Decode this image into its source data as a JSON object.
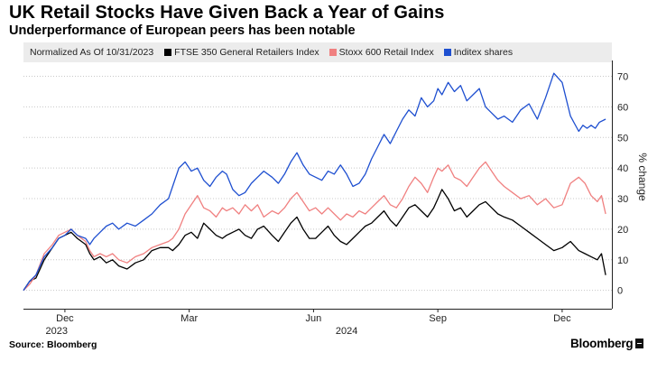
{
  "chart_data": {
    "type": "line",
    "title": "UK Retail Stocks Have Given Back a Year of Gains",
    "subtitle": "Underperformance of European peers has been notable",
    "note": "Normalized As Of 10/31/2023",
    "ylabel": "% change",
    "ylim": [
      -6,
      74
    ],
    "yticks": [
      0,
      10,
      20,
      30,
      40,
      50,
      60,
      70
    ],
    "xlim": [
      0,
      14.2
    ],
    "xticks": [
      {
        "label": "Dec",
        "x": 1
      },
      {
        "label": "Mar",
        "x": 4
      },
      {
        "label": "Jun",
        "x": 7
      },
      {
        "label": "Sep",
        "x": 10
      },
      {
        "label": "Dec",
        "x": 13
      }
    ],
    "year_labels": [
      {
        "label": "2023",
        "x": 0.8
      },
      {
        "label": "2024",
        "x": 7.8
      }
    ],
    "series": [
      {
        "name": "FTSE 350 General Retailers Index",
        "color": "#000000",
        "x": [
          0,
          0.15,
          0.3,
          0.5,
          0.7,
          0.85,
          1,
          1.15,
          1.3,
          1.5,
          1.6,
          1.7,
          1.85,
          2,
          2.15,
          2.3,
          2.5,
          2.7,
          2.9,
          3.1,
          3.3,
          3.5,
          3.6,
          3.75,
          3.9,
          4.05,
          4.2,
          4.35,
          4.5,
          4.65,
          4.8,
          4.9,
          5.05,
          5.2,
          5.35,
          5.5,
          5.65,
          5.8,
          6.0,
          6.15,
          6.3,
          6.45,
          6.6,
          6.75,
          6.9,
          7.05,
          7.2,
          7.35,
          7.5,
          7.65,
          7.8,
          7.95,
          8.1,
          8.25,
          8.4,
          8.55,
          8.7,
          8.85,
          9.0,
          9.15,
          9.3,
          9.45,
          9.6,
          9.75,
          9.9,
          10.0,
          10.1,
          10.25,
          10.4,
          10.55,
          10.7,
          10.85,
          11.0,
          11.15,
          11.3,
          11.45,
          11.6,
          11.8,
          12.0,
          12.2,
          12.4,
          12.6,
          12.8,
          13.0,
          13.2,
          13.4,
          13.55,
          13.7,
          13.85,
          13.95,
          14.05
        ],
        "values": [
          0,
          3,
          4,
          10,
          14,
          17,
          18,
          19,
          17,
          15,
          12,
          10,
          11,
          9,
          10,
          8,
          7,
          9,
          10,
          13,
          14,
          14,
          13,
          15,
          18,
          19,
          17,
          22,
          20,
          18,
          17,
          18,
          19,
          20,
          18,
          17,
          20,
          21,
          18,
          16,
          19,
          22,
          24,
          20,
          17,
          17,
          19,
          21,
          18,
          16,
          15,
          17,
          19,
          21,
          22,
          24,
          26,
          23,
          21,
          24,
          27,
          28,
          26,
          24,
          27,
          30,
          33,
          30,
          26,
          27,
          24,
          26,
          28,
          29,
          27,
          25,
          24,
          23,
          21,
          19,
          17,
          15,
          13,
          14,
          16,
          13,
          12,
          11,
          10,
          12,
          5
        ]
      },
      {
        "name": "Stoxx 600 Retail Index",
        "color": "#f08080",
        "x": [
          0,
          0.15,
          0.3,
          0.5,
          0.7,
          0.85,
          1,
          1.15,
          1.3,
          1.5,
          1.6,
          1.7,
          1.85,
          2,
          2.15,
          2.3,
          2.5,
          2.7,
          2.9,
          3.1,
          3.3,
          3.5,
          3.6,
          3.75,
          3.9,
          4.05,
          4.2,
          4.35,
          4.5,
          4.65,
          4.8,
          4.9,
          5.05,
          5.2,
          5.35,
          5.5,
          5.65,
          5.8,
          6.0,
          6.15,
          6.3,
          6.45,
          6.6,
          6.75,
          6.9,
          7.05,
          7.2,
          7.35,
          7.5,
          7.65,
          7.8,
          7.95,
          8.1,
          8.25,
          8.4,
          8.55,
          8.7,
          8.85,
          9.0,
          9.15,
          9.3,
          9.45,
          9.6,
          9.75,
          9.9,
          10.0,
          10.1,
          10.25,
          10.4,
          10.55,
          10.7,
          10.85,
          11.0,
          11.15,
          11.3,
          11.45,
          11.6,
          11.8,
          12.0,
          12.2,
          12.4,
          12.6,
          12.8,
          13.0,
          13.2,
          13.4,
          13.55,
          13.7,
          13.85,
          13.95,
          14.05
        ],
        "values": [
          0,
          2,
          5,
          12,
          15,
          18,
          19,
          20,
          18,
          16,
          13,
          11,
          12,
          11,
          12,
          10,
          9,
          11,
          12,
          14,
          15,
          16,
          17,
          20,
          25,
          28,
          31,
          27,
          26,
          24,
          27,
          26,
          27,
          25,
          28,
          26,
          28,
          24,
          26,
          25,
          27,
          30,
          32,
          29,
          26,
          27,
          25,
          27,
          25,
          23,
          25,
          24,
          26,
          25,
          27,
          29,
          31,
          28,
          27,
          30,
          34,
          37,
          35,
          32,
          37,
          40,
          39,
          41,
          37,
          36,
          34,
          37,
          40,
          42,
          39,
          36,
          34,
          32,
          30,
          31,
          28,
          30,
          27,
          28,
          35,
          37,
          35,
          31,
          29,
          31,
          25
        ]
      },
      {
        "name": "Inditex shares",
        "color": "#1e4fd0",
        "x": [
          0,
          0.15,
          0.3,
          0.5,
          0.7,
          0.85,
          1,
          1.15,
          1.3,
          1.5,
          1.6,
          1.7,
          1.85,
          2,
          2.15,
          2.3,
          2.5,
          2.7,
          2.9,
          3.1,
          3.3,
          3.5,
          3.6,
          3.75,
          3.9,
          4.05,
          4.2,
          4.35,
          4.5,
          4.65,
          4.8,
          4.9,
          5.05,
          5.2,
          5.35,
          5.5,
          5.65,
          5.8,
          6.0,
          6.15,
          6.3,
          6.45,
          6.6,
          6.75,
          6.9,
          7.05,
          7.2,
          7.35,
          7.5,
          7.65,
          7.8,
          7.95,
          8.1,
          8.25,
          8.4,
          8.55,
          8.7,
          8.85,
          9.0,
          9.15,
          9.3,
          9.45,
          9.6,
          9.75,
          9.9,
          10.0,
          10.1,
          10.25,
          10.4,
          10.55,
          10.7,
          10.85,
          11.0,
          11.15,
          11.3,
          11.45,
          11.6,
          11.8,
          12.0,
          12.2,
          12.4,
          12.6,
          12.8,
          13.0,
          13.2,
          13.4,
          13.5,
          13.6,
          13.7,
          13.8,
          13.9,
          14.05
        ],
        "values": [
          0,
          3,
          5,
          11,
          14,
          17,
          18,
          20,
          18,
          17,
          15,
          17,
          19,
          21,
          22,
          20,
          22,
          21,
          23,
          25,
          28,
          30,
          34,
          40,
          42,
          39,
          40,
          36,
          34,
          37,
          39,
          38,
          33,
          31,
          32,
          35,
          37,
          39,
          37,
          35,
          38,
          42,
          45,
          41,
          38,
          37,
          36,
          39,
          38,
          41,
          38,
          34,
          35,
          38,
          43,
          47,
          51,
          48,
          52,
          56,
          59,
          57,
          63,
          60,
          62,
          66,
          64,
          68,
          65,
          67,
          62,
          64,
          66,
          60,
          58,
          56,
          57,
          55,
          59,
          61,
          56,
          63,
          71,
          68,
          57,
          52,
          54,
          53,
          54,
          53,
          55,
          56
        ]
      }
    ]
  },
  "footer": {
    "source": "Source: Bloomberg",
    "brand": "Bloomberg"
  }
}
